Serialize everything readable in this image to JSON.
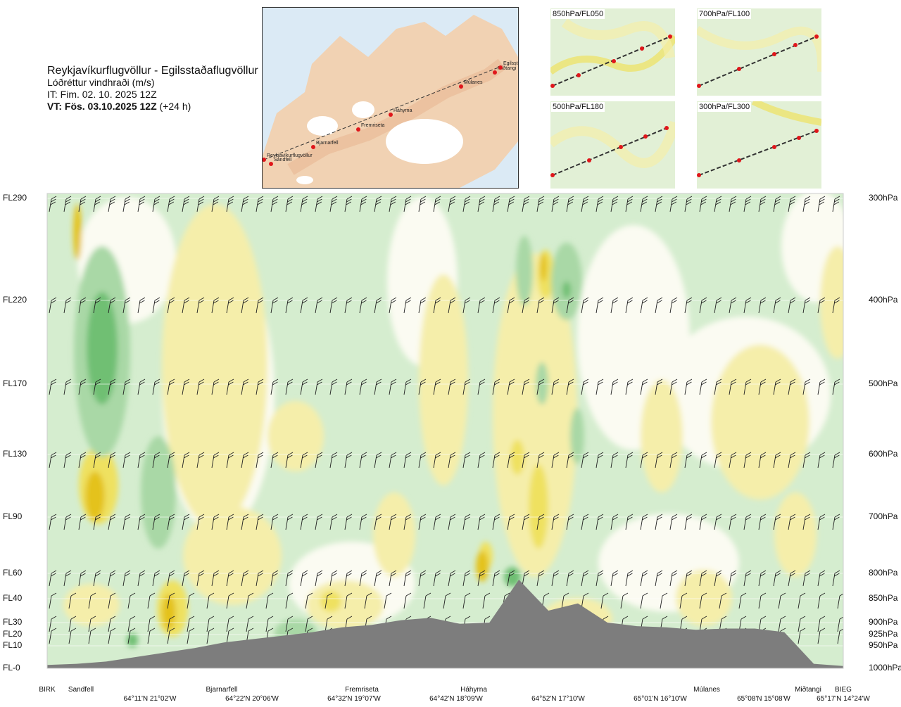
{
  "header": {
    "route": "Reykjavíkurflugvöllur - Egilsstaðaflugvöllur",
    "variable": "Lóðréttur vindhraði (m/s)",
    "issue_time": "IT: Fim. 02. 10. 2025 12Z",
    "valid_time": "VT: Fös. 03.10.2025 12Z",
    "valid_offset": "(+24 h)"
  },
  "route_map": {
    "waypoints": [
      "Reykjavíkurflugvöllur",
      "Sandfell",
      "Bjarnarfell",
      "Fremriseta",
      "Háhyrna",
      "Múlanes",
      "Miðtangi",
      "Egilsstaðir"
    ]
  },
  "mini_maps": [
    {
      "label": "850hPa/FL050"
    },
    {
      "label": "700hPa/FL100"
    },
    {
      "label": "500hPa/FL180"
    },
    {
      "label": "300hPa/FL300"
    }
  ],
  "colors": {
    "strong_down": "#6fbf73",
    "mod_down": "#a9d8a6",
    "weak_down": "#d5edcf",
    "neutral": "#fbfbf2",
    "weak_up": "#f5eeaa",
    "mod_up": "#efe160",
    "strong_up": "#e4c21c",
    "terrain": "#7d7d7d",
    "route_line": "#333333",
    "waypoint": "#e0161b"
  },
  "chart_data": {
    "type": "heatmap",
    "title": "Reykjavíkurflugvöllur - Egilsstaðaflugvöllur",
    "variable": "Lóðréttur vindhraði (m/s)",
    "y_left_ticks": [
      "FL290",
      "FL220",
      "FL170",
      "FL130",
      "FL90",
      "FL60",
      "FL40",
      "FL30",
      "FL20",
      "FL10",
      "FL-0"
    ],
    "y_right_ticks": [
      "300hPa",
      "400hPa",
      "500hPa",
      "600hPa",
      "700hPa",
      "800hPa",
      "850hPa",
      "900hPa",
      "925hPa",
      "950hPa",
      "1000hPa"
    ],
    "waypoint_labels": [
      "BIRK",
      "Sandfell",
      "Bjarnarfell",
      "Fremriseta",
      "Háhyrna",
      "Múlanes",
      "Miðtangi",
      "BIEG"
    ],
    "coordinate_labels": [
      "64°11'N 21°02'W",
      "64°22'N 20°06'W",
      "64°32'N 19°07'W",
      "64°42'N 18°09'W",
      "64°52'N 17°10'W",
      "65°01'N 16°10'W",
      "65°08'N 15°08'W",
      "65°17'N 14°24'W"
    ],
    "terrain_elevation_ft": [
      150,
      200,
      300,
      500,
      700,
      900,
      1300,
      1600,
      1900,
      2200,
      2600,
      2800,
      3100,
      3200,
      2900,
      3000,
      5500,
      3500,
      3800,
      3000,
      2700,
      2600,
      2400,
      2500,
      2500,
      2200,
      200,
      100
    ],
    "grid": true,
    "wind_barbs": true
  }
}
